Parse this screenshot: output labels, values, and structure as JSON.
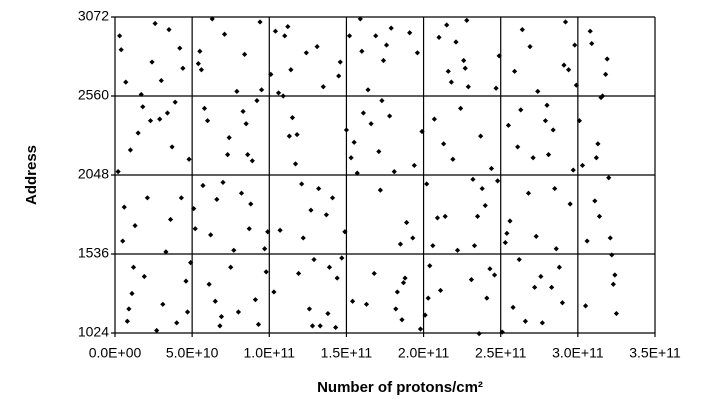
{
  "chart_data": {
    "type": "scatter",
    "xlabel": "Number of protons/cm²",
    "ylabel": "Address",
    "color": "#000000",
    "grid": true,
    "xlim": [
      0,
      350000000000.0
    ],
    "ylim": [
      1024,
      3072
    ],
    "xticks": [
      {
        "value": 0,
        "label": "0.0E+00"
      },
      {
        "value": 50000000000.0,
        "label": "5.0E+10"
      },
      {
        "value": 100000000000.0,
        "label": "1.0E+11"
      },
      {
        "value": 150000000000.0,
        "label": "1.5E+11"
      },
      {
        "value": 200000000000.0,
        "label": "2.0E+11"
      },
      {
        "value": 250000000000.0,
        "label": "2.5E+11"
      },
      {
        "value": 300000000000.0,
        "label": "3.0E+11"
      },
      {
        "value": 350000000000.0,
        "label": "3.5E+11"
      }
    ],
    "yticks": [
      1024,
      1536,
      2048,
      2560,
      3072
    ],
    "series": [
      {
        "name": "Address",
        "color": "#000000",
        "x": [
          3000000000.0,
          31000000000.0,
          58000000000.0,
          87000000000.0,
          112000000000.0,
          144000000000.0,
          171000000000.0,
          198000000000.0,
          226000000000.0,
          253000000000.0,
          284000000000.0,
          311000000000.0,
          12000000000.0,
          42000000000.0,
          69000000000.0,
          95000000000.0,
          127000000000.0,
          152000000000.0,
          183000000000.0,
          207000000000.0,
          238000000000.0,
          266000000000.0,
          292000000000.0,
          322000000000.0,
          7000000000.0,
          36000000000.0,
          63000000000.0,
          91000000000.0,
          118000000000.0,
          149000000000.0,
          176000000000.0,
          202000000000.0,
          231000000000.0,
          259000000000.0,
          288000000000.0,
          316000000000.0,
          21000000000.0,
          48000000000.0,
          77000000000.0,
          104000000000.0,
          133000000000.0,
          161000000000.0,
          189000000000.0,
          215000000000.0,
          244000000000.0,
          272000000000.0,
          299000000000.0,
          305000000000.0,
          15000000000.0,
          27000000000.0,
          54000000000.0,
          82000000000.0,
          109000000000.0,
          138000000000.0,
          166000000000.0,
          193000000000.0,
          221000000000.0,
          248000000000.0,
          277000000000.0,
          319000000000.0,
          5000000000.0,
          39000000000.0,
          66000000000.0,
          98000000000.0,
          124000000000.0,
          157000000000.0,
          179000000000.0,
          211000000000.0,
          235000000000.0,
          263000000000.0,
          295000000000.0,
          324000000000.0,
          26000000000.0,
          51000000000.0,
          74000000000.0,
          101000000000.0,
          129000000000.0,
          146000000000.0,
          186000000000.0,
          218000000000.0,
          241000000000.0,
          269000000000.0,
          281000000000.0,
          308000000000.0,
          9000000000.0,
          44000000000.0,
          61000000000.0,
          89000000000.0,
          115000000000.0,
          141000000000.0,
          173000000000.0,
          204000000000.0,
          228000000000.0,
          256000000000.0,
          286000000000.0,
          313000000000.0,
          18000000000.0,
          33000000000.0,
          71000000000.0,
          93000000000.0,
          121000000000.0,
          154000000000.0,
          181000000000.0,
          196000000000.0,
          233000000000.0,
          261000000000.0,
          291000000000.0,
          321000000000.0,
          2000000000.0,
          46000000000.0,
          57000000000.0,
          84000000000.0,
          107000000000.0,
          135000000000.0,
          168000000000.0,
          209000000000.0,
          224000000000.0,
          251000000000.0,
          279000000000.0,
          303000000000.0,
          11000000000.0,
          35000000000.0,
          62000000000.0,
          85000000000.0,
          114000000000.0,
          147000000000.0,
          169000000000.0,
          201000000000.0,
          229000000000.0,
          255000000000.0,
          283000000000.0,
          318000000000.0,
          24000000000.0,
          40000000000.0,
          73000000000.0,
          97000000000.0,
          126000000000.0,
          150000000000.0,
          185000000000.0,
          213000000000.0,
          236000000000.0,
          268000000000.0,
          297000000000.0,
          325000000000.0,
          6000000000.0,
          29000000000.0,
          55000000000.0,
          80000000000.0,
          110000000000.0,
          137000000000.0,
          163000000000.0,
          191000000000.0,
          219000000000.0,
          246000000000.0,
          274000000000.0,
          301000000000.0,
          17000000000.0,
          49000000000.0,
          68000000000.0,
          92000000000.0,
          122000000000.0,
          159000000000.0,
          178000000000.0,
          206000000000.0,
          240000000000.0,
          264000000000.0,
          290000000000.0,
          314000000000.0,
          8000000000.0,
          37000000000.0,
          60000000000.0,
          88000000000.0,
          117000000000.0,
          143000000000.0,
          174000000000.0,
          199000000000.0,
          227000000000.0,
          258000000000.0,
          285000000000.0,
          309000000000.0,
          23000000000.0,
          52000000000.0,
          79000000000.0,
          103000000000.0,
          131000000000.0,
          155000000000.0,
          187000000000.0,
          216000000000.0,
          243000000000.0,
          271000000000.0,
          298000000000.0,
          323000000000.0,
          13000000000.0,
          30000000000.0,
          65000000000.0,
          94000000000.0,
          119000000000.0,
          145000000000.0,
          172000000000.0,
          203000000000.0,
          232000000000.0,
          254000000000.0,
          280000000000.0,
          312000000000.0,
          4000000000.0,
          43000000000.0,
          70000000000.0,
          86000000000.0,
          113000000000.0,
          139000000000.0,
          164000000000.0,
          194000000000.0,
          222000000000.0,
          249000000000.0,
          276000000000.0,
          306000000000.0,
          19000000000.0,
          47000000000.0,
          56000000000.0,
          99000000000.0,
          128000000000.0,
          153000000000.0,
          182000000000.0,
          210000000000.0,
          237000000000.0,
          262000000000.0,
          294000000000.0,
          320000000000.0,
          10000000000.0,
          34000000000.0,
          75000000000.0,
          83000000000.0,
          106000000000.0,
          132000000000.0,
          160000000000.0,
          188000000000.0,
          214000000000.0,
          247000000000.0,
          273000000000.0,
          315000000000.0
        ],
        "values": [
          2950,
          1210,
          2480,
          1700,
          3010,
          1380,
          2200,
          1050,
          2790,
          1610,
          2340,
          1880,
          1450,
          2870,
          1130,
          2600,
          1820,
          2950,
          1290,
          2410,
          1960,
          1100,
          3040,
          1530,
          2650,
          1760,
          3060,
          1240,
          2310,
          1680,
          2890,
          1990,
          1370,
          2720,
          1450,
          2560,
          1900,
          2150,
          1560,
          2980,
          1070,
          2450,
          1740,
          3020,
          2090,
          1320,
          2630,
          1200,
          2320,
          1040,
          2770,
          1930,
          2560,
          1150,
          2380,
          1640,
          2910,
          2010,
          1090,
          2800,
          1620,
          2520,
          1890,
          1420,
          2840,
          2060,
          3000,
          1300,
          1780,
          2470,
          1860,
          1400,
          3030,
          1830,
          2290,
          2700,
          1500,
          2780,
          1110,
          2650,
          1250,
          2880,
          2180,
          2980,
          1180,
          2740,
          1340,
          2140,
          2420,
          1900,
          2530,
          1460,
          3050,
          1750,
          1570,
          2250,
          2490,
          1550,
          2960,
          1080,
          1990,
          1230,
          2070,
          2840,
          1590,
          2230,
          2760,
          1640,
          2070,
          1360,
          1980,
          2830,
          1690,
          2620,
          1410,
          1770,
          2480,
          1030,
          2400,
          2110,
          1280,
          2990,
          1660,
          2380,
          2730,
          1510,
          2950,
          1140,
          2620,
          2370,
          1320,
          2700,
          2780,
          1090,
          2180,
          1570,
          1180,
          2340,
          1600,
          2250,
          1020,
          1930,
          2080,
          1150,
          1840,
          2410,
          2850,
          1160,
          2950,
          1790,
          1210,
          2970,
          2150,
          1400,
          2590,
          2400,
          2570,
          1480,
          1070,
          2530,
          1640,
          3060,
          2430,
          1590,
          1850,
          2990,
          1220,
          1780,
          1100,
          2230,
          2400,
          1860,
          2120,
          1060,
          2790,
          2330,
          2740,
          1190,
          1960,
          2900,
          2400,
          1700,
          2590,
          1290,
          2880,
          2260,
          1350,
          2720,
          1440,
          2160,
          2890,
          1340,
          1720,
          2660,
          1230,
          3040,
          1410,
          2690,
          1950,
          1250,
          2020,
          1670,
          2500,
          2160,
          2860,
          1900,
          2000,
          2180,
          2300,
          1450,
          2600,
          2110,
          1560,
          2820,
          1390,
          1620,
          1390,
          1160,
          2730,
          1680,
          1070,
          2160,
          1180,
          2940,
          2300,
          1500,
          2730,
          2030,
          2210,
          2450,
          1450,
          2460,
          2580,
          1960,
          2850,
          1380,
          1780,
          2610,
          1650,
          2550
        ]
      }
    ]
  }
}
